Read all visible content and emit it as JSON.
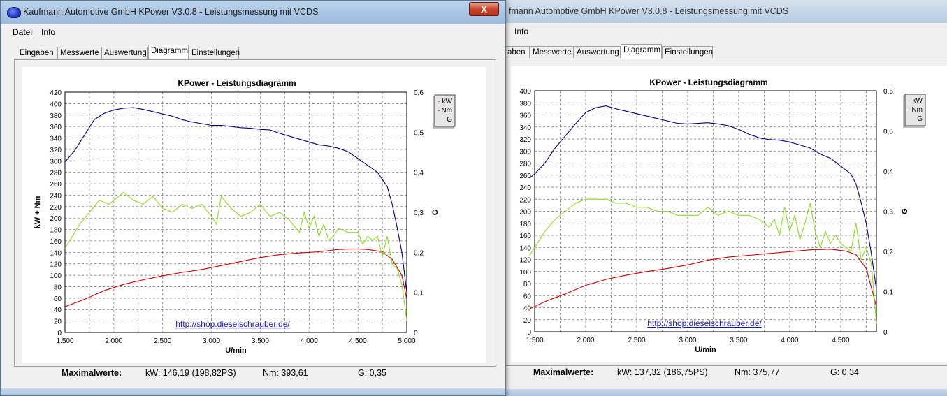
{
  "windows": [
    {
      "title": "Kaufmann Automotive GmbH  KPower V3.0.8 - Leistungsmessung mit VCDS",
      "close_label": "X",
      "menu": [
        "Datei",
        "Info"
      ],
      "tabs": [
        "Eingaben",
        "Messwerte",
        "Auswertung",
        "Diagramm",
        "Einstellungen"
      ],
      "active_tab": "Diagramm",
      "maxrow": {
        "label": "Maximalwerte:",
        "kw": "kW: 146,19 (198,82PS)",
        "nm": "Nm: 393,61",
        "g": "G: 0,35"
      },
      "colors": {
        "kw": "#cc0000",
        "nm": "#00007f",
        "g": "#88dd22"
      },
      "chart_data": {
        "type": "line",
        "title": "KPower - Leistungsdiagramm",
        "xlabel": "U/min",
        "ylabel": "kW + Nm",
        "y2label": "G",
        "xlim": [
          1500,
          5000
        ],
        "ylim": [
          0,
          420
        ],
        "y2lim": [
          0,
          0.6
        ],
        "x_ticks": [
          "1.500",
          "2.000",
          "2.500",
          "3.000",
          "3.500",
          "4.000",
          "4.500",
          "5.000"
        ],
        "y_ticks": [
          "0",
          "20",
          "40",
          "60",
          "80",
          "100",
          "120",
          "140",
          "160",
          "180",
          "200",
          "220",
          "240",
          "260",
          "280",
          "300",
          "320",
          "340",
          "360",
          "380",
          "400",
          "420"
        ],
        "y2_ticks": [
          "0",
          "0,1",
          "0,2",
          "0,3",
          "0,4",
          "0,5",
          "0,6"
        ],
        "watermark": "http://shop.dieselschrauber.de/",
        "legend": [
          "kW",
          "Nm",
          "G"
        ],
        "legend_position": "top-right",
        "grid": true,
        "series": [
          {
            "name": "kW",
            "axis": "left",
            "x": [
              1500,
              1700,
              1900,
              2100,
              2300,
              2500,
              2700,
              2900,
              3100,
              3300,
              3500,
              3700,
              3900,
              4100,
              4300,
              4450,
              4600,
              4750,
              4850,
              4950,
              5000
            ],
            "y": [
              45,
              58,
              73,
              84,
              92,
              99,
              105,
              110,
              117,
              124,
              131,
              136,
              139,
              141,
              145,
              146,
              145,
              141,
              128,
              100,
              58
            ]
          },
          {
            "name": "Nm",
            "axis": "left",
            "x": [
              1500,
              1600,
              1700,
              1800,
              1900,
              2000,
              2100,
              2200,
              2300,
              2400,
              2500,
              2600,
              2700,
              2800,
              2900,
              3000,
              3100,
              3200,
              3300,
              3400,
              3500,
              3600,
              3700,
              3800,
              3900,
              4000,
              4100,
              4200,
              4300,
              4400,
              4500,
              4600,
              4700,
              4800,
              4850,
              4900,
              4950,
              5000
            ],
            "y": [
              298,
              318,
              345,
              372,
              383,
              389,
              392,
              393,
              390,
              386,
              382,
              378,
              372,
              368,
              365,
              362,
              362,
              360,
              358,
              357,
              355,
              354,
              348,
              343,
              338,
              333,
              328,
              326,
              322,
              316,
              304,
              292,
              280,
              255,
              225,
              185,
              140,
              70
            ]
          },
          {
            "name": "G",
            "axis": "right",
            "x": [
              1500,
              1550,
              1650,
              1750,
              1850,
              1950,
              2050,
              2100,
              2200,
              2300,
              2400,
              2500,
              2600,
              2700,
              2800,
              2900,
              3000,
              3050,
              3100,
              3200,
              3300,
              3400,
              3500,
              3600,
              3700,
              3800,
              3900,
              3950,
              4000,
              4050,
              4100,
              4150,
              4200,
              4250,
              4300,
              4400,
              4500,
              4550,
              4600,
              4650,
              4700,
              4750,
              4800,
              4850,
              4900,
              4950,
              5000
            ],
            "y": [
              0.21,
              0.23,
              0.27,
              0.3,
              0.33,
              0.32,
              0.34,
              0.35,
              0.33,
              0.32,
              0.34,
              0.31,
              0.3,
              0.32,
              0.31,
              0.32,
              0.29,
              0.27,
              0.34,
              0.31,
              0.29,
              0.3,
              0.32,
              0.29,
              0.3,
              0.28,
              0.25,
              0.3,
              0.26,
              0.29,
              0.24,
              0.27,
              0.23,
              0.24,
              0.26,
              0.25,
              0.25,
              0.22,
              0.24,
              0.23,
              0.24,
              0.19,
              0.24,
              0.17,
              0.16,
              0.12,
              0.03
            ]
          }
        ]
      }
    },
    {
      "title": "fmann Automotive GmbH  KPower V3.0.8 - Leistungsmessung mit VCDS",
      "menu": [
        "Info"
      ],
      "tabs": [
        "aben",
        "Messwerte",
        "Auswertung",
        "Diagramm",
        "Einstellungen"
      ],
      "active_tab": "Diagramm",
      "maxrow": {
        "label": "Maximalwerte:",
        "kw": "kW: 137,32 (186,75PS)",
        "nm": "Nm: 375,77",
        "g": "G: 0,34"
      },
      "colors": {
        "kw": "#cc0000",
        "nm": "#00007f",
        "g": "#88dd22"
      },
      "chart_data": {
        "type": "line",
        "title": "KPower - Leistungsdiagramm",
        "xlabel": "U/min",
        "ylabel": "kW + Nm",
        "y2label": "G",
        "xlim": [
          1500,
          4850
        ],
        "ylim": [
          0,
          400
        ],
        "y2lim": [
          0,
          0.6
        ],
        "x_ticks": [
          "1.500",
          "2.000",
          "2.500",
          "3.000",
          "3.500",
          "4.000",
          "4.500"
        ],
        "y_ticks": [
          "0",
          "20",
          "40",
          "60",
          "80",
          "100",
          "120",
          "140",
          "160",
          "180",
          "200",
          "220",
          "240",
          "260",
          "280",
          "300",
          "320",
          "340",
          "360",
          "380",
          "400"
        ],
        "y2_ticks": [
          "0",
          "0,1",
          "0,2",
          "0,3",
          "0,4",
          "0,5",
          "0,6"
        ],
        "watermark": "http://shop.dieselschrauber.de/",
        "legend": [
          "kW",
          "Nm",
          "G"
        ],
        "legend_position": "top-right",
        "grid": true,
        "series": [
          {
            "name": "kW",
            "axis": "left",
            "x": [
              1450,
              1600,
              1800,
              2000,
              2200,
              2400,
              2600,
              2800,
              3000,
              3200,
              3400,
              3600,
              3800,
              4000,
              4200,
              4400,
              4550,
              4650,
              4750,
              4850
            ],
            "y": [
              38,
              50,
              63,
              77,
              87,
              94,
              100,
              105,
              111,
              119,
              124,
              127,
              130,
              133,
              136,
              137,
              134,
              128,
              105,
              42
            ],
            "note_hidden": ""
          },
          {
            "name": "Nm",
            "axis": "left",
            "x": [
              1450,
              1500,
              1600,
              1700,
              1800,
              1900,
              2000,
              2100,
              2200,
              2300,
              2400,
              2500,
              2600,
              2700,
              2800,
              2900,
              3000,
              3100,
              3200,
              3300,
              3400,
              3500,
              3600,
              3700,
              3800,
              3900,
              4000,
              4100,
              4200,
              4300,
              4400,
              4500,
              4600,
              4650,
              4700,
              4750,
              4800,
              4850
            ],
            "y": [
              255,
              262,
              280,
              305,
              325,
              345,
              364,
              372,
              375,
              370,
              366,
              362,
              358,
              354,
              350,
              346,
              345,
              346,
              347,
              345,
              342,
              336,
              328,
              322,
              319,
              318,
              315,
              310,
              305,
              295,
              288,
              275,
              262,
              245,
              215,
              180,
              130,
              70
            ]
          },
          {
            "name": "G",
            "axis": "right",
            "x": [
              1450,
              1500,
              1600,
              1700,
              1800,
              1900,
              2000,
              2100,
              2200,
              2300,
              2400,
              2500,
              2600,
              2700,
              2800,
              2900,
              3000,
              3100,
              3200,
              3300,
              3400,
              3500,
              3600,
              3700,
              3800,
              3850,
              3900,
              3950,
              4000,
              4050,
              4100,
              4150,
              4200,
              4250,
              4300,
              4350,
              4400,
              4450,
              4500,
              4550,
              4600,
              4650,
              4700,
              4750,
              4800,
              4850
            ],
            "y": [
              0.19,
              0.21,
              0.25,
              0.28,
              0.3,
              0.32,
              0.33,
              0.33,
              0.33,
              0.32,
              0.32,
              0.31,
              0.31,
              0.3,
              0.3,
              0.29,
              0.29,
              0.29,
              0.31,
              0.29,
              0.3,
              0.29,
              0.29,
              0.28,
              0.26,
              0.28,
              0.24,
              0.31,
              0.25,
              0.29,
              0.23,
              0.27,
              0.32,
              0.25,
              0.21,
              0.25,
              0.22,
              0.24,
              0.22,
              0.21,
              0.2,
              0.27,
              0.18,
              0.21,
              0.17,
              0.02
            ]
          }
        ]
      }
    }
  ]
}
